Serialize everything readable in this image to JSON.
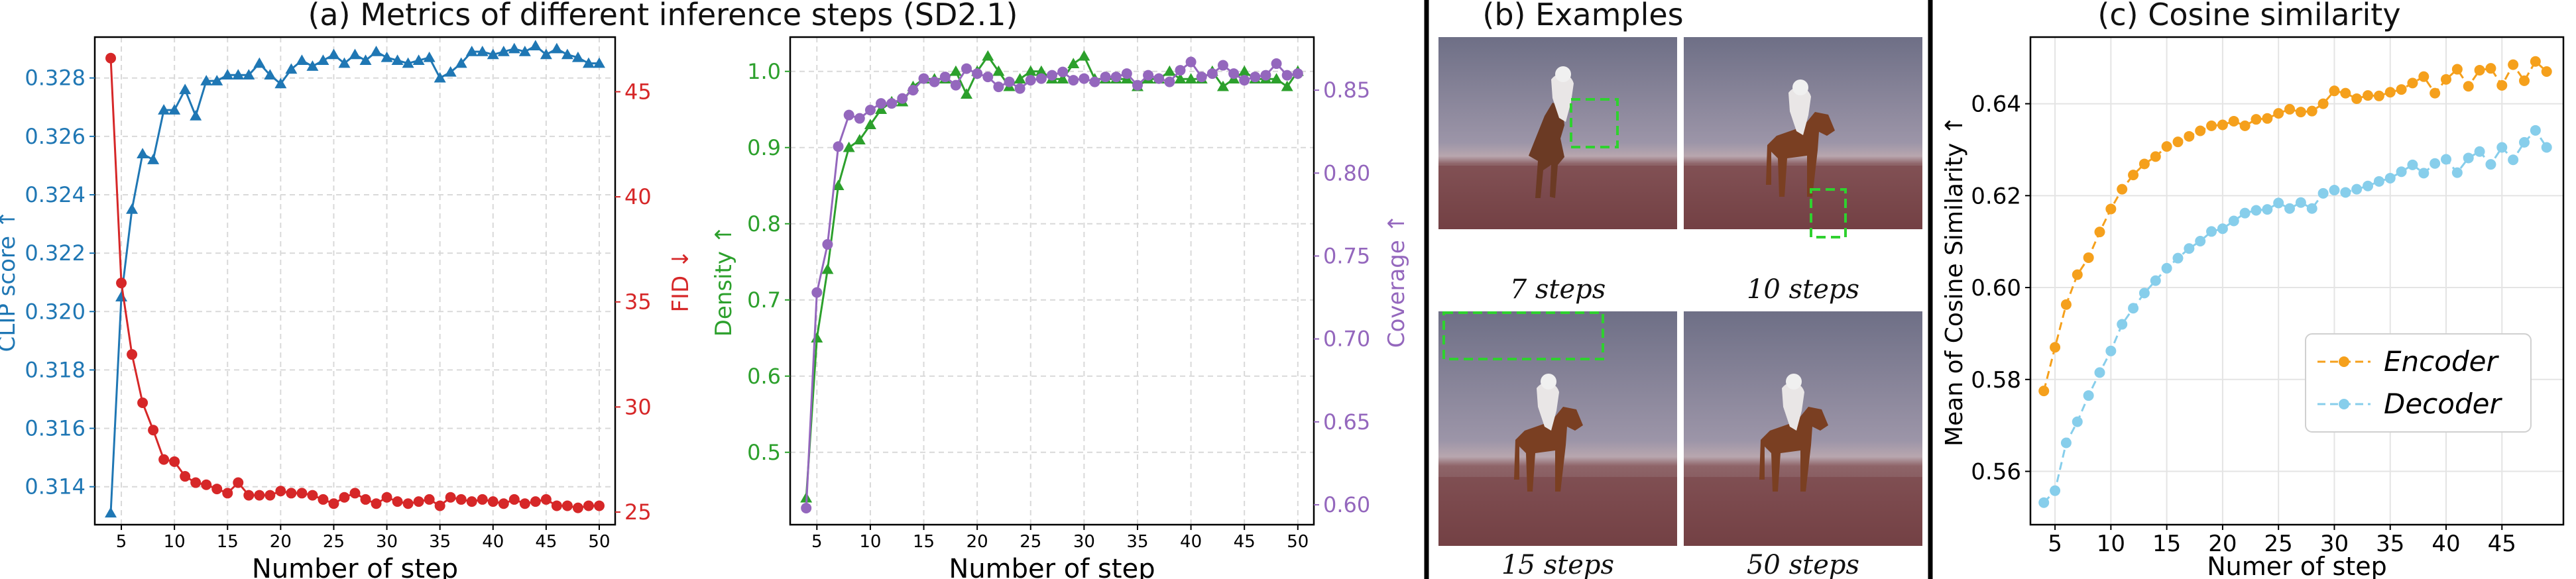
{
  "sections": {
    "a_title": "(a) Metrics of different inference steps (SD2.1)",
    "b_title": "(b) Examples",
    "c_title": "(c) Cosine similarity"
  },
  "examples": [
    {
      "caption": "7 steps"
    },
    {
      "caption": "10 steps"
    },
    {
      "caption": "15 steps"
    },
    {
      "caption": "50 steps"
    }
  ],
  "colors": {
    "clip": "#1f77b4",
    "fid": "#d62728",
    "density": "#2ca02c",
    "coverage": "#9467bd",
    "encoder": "#f5a01c",
    "decoder": "#87ceeb",
    "grid": "#d9d9d9"
  },
  "chart_data": [
    {
      "type": "line",
      "xlabel": "Number of step",
      "xlim": [
        2.5,
        51.5
      ],
      "xticks": [
        5,
        10,
        15,
        20,
        25,
        30,
        35,
        40,
        45,
        50
      ],
      "x": [
        4,
        5,
        6,
        7,
        8,
        9,
        10,
        11,
        12,
        13,
        14,
        15,
        16,
        17,
        18,
        19,
        20,
        21,
        22,
        23,
        24,
        25,
        26,
        27,
        28,
        29,
        30,
        31,
        32,
        33,
        34,
        35,
        36,
        37,
        38,
        39,
        40,
        41,
        42,
        43,
        44,
        45,
        46,
        47,
        48,
        49,
        50
      ],
      "y_left": {
        "label": "CLIP score ↑",
        "ylim": [
          0.3127,
          0.3294
        ],
        "ticks": [
          "0.314",
          "0.316",
          "0.318",
          "0.320",
          "0.322",
          "0.324",
          "0.326",
          "0.328"
        ],
        "tick_values": [
          0.314,
          0.316,
          0.318,
          0.32,
          0.322,
          0.324,
          0.326,
          0.328
        ]
      },
      "y_right": {
        "label": "FID ↓",
        "ylim": [
          24.4,
          47.6
        ],
        "ticks": [
          "25",
          "30",
          "35",
          "40",
          "45"
        ],
        "tick_values": [
          25,
          30,
          35,
          40,
          45
        ]
      },
      "series": [
        {
          "axis": "left",
          "marker": "triangle",
          "color": "#1f77b4",
          "values": [
            0.3131,
            0.3205,
            0.3235,
            0.3254,
            0.3252,
            0.3269,
            0.3269,
            0.3276,
            0.3267,
            0.3279,
            0.3279,
            0.3281,
            0.3281,
            0.3281,
            0.3285,
            0.3281,
            0.3278,
            0.3283,
            0.3286,
            0.3284,
            0.3286,
            0.3288,
            0.3285,
            0.3288,
            0.3286,
            0.3289,
            0.3287,
            0.3286,
            0.3285,
            0.3286,
            0.3287,
            0.328,
            0.3282,
            0.3285,
            0.3289,
            0.3289,
            0.3288,
            0.3289,
            0.329,
            0.3289,
            0.3291,
            0.3288,
            0.329,
            0.3288,
            0.3287,
            0.3285,
            0.3285
          ]
        },
        {
          "axis": "right",
          "marker": "circle",
          "color": "#d62728",
          "values": [
            46.6,
            35.9,
            32.5,
            30.2,
            28.9,
            27.5,
            27.4,
            26.7,
            26.4,
            26.3,
            26.1,
            25.9,
            26.4,
            25.8,
            25.8,
            25.8,
            26.0,
            25.9,
            25.9,
            25.8,
            25.6,
            25.4,
            25.7,
            25.9,
            25.6,
            25.4,
            25.7,
            25.5,
            25.4,
            25.5,
            25.6,
            25.3,
            25.7,
            25.6,
            25.5,
            25.6,
            25.5,
            25.4,
            25.6,
            25.4,
            25.5,
            25.6,
            25.3,
            25.3,
            25.2,
            25.3,
            25.3
          ]
        }
      ]
    },
    {
      "type": "line",
      "xlabel": "Number of step",
      "xlim": [
        2.5,
        51.5
      ],
      "xticks": [
        5,
        10,
        15,
        20,
        25,
        30,
        35,
        40,
        45,
        50
      ],
      "x": [
        4,
        5,
        6,
        7,
        8,
        9,
        10,
        11,
        12,
        13,
        14,
        15,
        16,
        17,
        18,
        19,
        20,
        21,
        22,
        23,
        24,
        25,
        26,
        27,
        28,
        29,
        30,
        31,
        32,
        33,
        34,
        35,
        36,
        37,
        38,
        39,
        40,
        41,
        42,
        43,
        44,
        45,
        46,
        47,
        48,
        49,
        50
      ],
      "y_left": {
        "label": "Density ↑",
        "ylim": [
          0.405,
          1.045
        ],
        "ticks": [
          "0.5",
          "0.6",
          "0.7",
          "0.8",
          "0.9",
          "1.0"
        ],
        "tick_values": [
          0.5,
          0.6,
          0.7,
          0.8,
          0.9,
          1.0
        ]
      },
      "y_right": {
        "label": "Coverage ↑",
        "ylim": [
          0.588,
          0.882
        ],
        "ticks": [
          "0.60",
          "0.65",
          "0.70",
          "0.75",
          "0.80",
          "0.85"
        ],
        "tick_values": [
          0.6,
          0.65,
          0.7,
          0.75,
          0.8,
          0.85
        ]
      },
      "series": [
        {
          "axis": "left",
          "marker": "triangle",
          "color": "#2ca02c",
          "values": [
            0.44,
            0.65,
            0.74,
            0.85,
            0.9,
            0.91,
            0.93,
            0.95,
            0.96,
            0.96,
            0.98,
            0.99,
            0.99,
            0.99,
            1.0,
            0.97,
            1.0,
            1.02,
            1.0,
            0.98,
            0.99,
            1.0,
            1.0,
            0.99,
            0.99,
            1.01,
            1.02,
            0.99,
            0.99,
            0.99,
            0.99,
            0.98,
            0.99,
            0.99,
            1.0,
            0.99,
            0.99,
            0.99,
            1.0,
            0.98,
            0.99,
            1.0,
            0.99,
            0.99,
            0.99,
            0.98,
            1.0
          ]
        },
        {
          "axis": "right",
          "marker": "circle",
          "color": "#9467bd",
          "values": [
            0.598,
            0.728,
            0.757,
            0.816,
            0.835,
            0.833,
            0.838,
            0.842,
            0.842,
            0.845,
            0.85,
            0.857,
            0.855,
            0.858,
            0.853,
            0.863,
            0.86,
            0.858,
            0.852,
            0.855,
            0.851,
            0.856,
            0.857,
            0.859,
            0.861,
            0.856,
            0.857,
            0.855,
            0.858,
            0.858,
            0.86,
            0.853,
            0.859,
            0.857,
            0.855,
            0.862,
            0.867,
            0.858,
            0.86,
            0.865,
            0.86,
            0.856,
            0.858,
            0.859,
            0.866,
            0.859,
            0.86
          ]
        }
      ]
    },
    {
      "type": "line",
      "title": "(c) Cosine similarity",
      "xlabel": "Numer of step",
      "ylabel": "Mean of Cosine Similarity ↑",
      "xlim": [
        2.8,
        50.5
      ],
      "ylim": [
        0.5484,
        0.6545
      ],
      "xticks": [
        5,
        10,
        15,
        20,
        25,
        30,
        35,
        40,
        45
      ],
      "yticks": [
        "0.56",
        "0.58",
        "0.60",
        "0.62",
        "0.64"
      ],
      "ytick_values": [
        0.56,
        0.58,
        0.6,
        0.62,
        0.64
      ],
      "x": [
        4,
        5,
        6,
        7,
        8,
        9,
        10,
        11,
        12,
        13,
        14,
        15,
        16,
        17,
        18,
        19,
        20,
        21,
        22,
        23,
        24,
        25,
        26,
        27,
        28,
        29,
        30,
        31,
        32,
        33,
        34,
        35,
        36,
        37,
        38,
        39,
        40,
        41,
        42,
        43,
        44,
        45,
        46,
        47,
        48,
        49
      ],
      "legend": "center-right",
      "series": [
        {
          "name": "Encoder",
          "color": "#f5a01c",
          "values": [
            0.5775,
            0.587,
            0.5963,
            0.6028,
            0.6065,
            0.6121,
            0.6171,
            0.6214,
            0.6245,
            0.6269,
            0.6285,
            0.6307,
            0.6317,
            0.6329,
            0.6341,
            0.6352,
            0.6354,
            0.6362,
            0.6352,
            0.6366,
            0.6368,
            0.6379,
            0.6388,
            0.6382,
            0.6384,
            0.64,
            0.6428,
            0.6423,
            0.6411,
            0.6418,
            0.6417,
            0.6425,
            0.6431,
            0.6445,
            0.6459,
            0.6423,
            0.6453,
            0.6475,
            0.6438,
            0.6473,
            0.6477,
            0.644,
            0.6485,
            0.645,
            0.6492,
            0.647
          ]
        },
        {
          "name": "Decoder",
          "color": "#87ceeb",
          "values": [
            0.5532,
            0.5558,
            0.5662,
            0.5708,
            0.5765,
            0.5815,
            0.5862,
            0.592,
            0.5955,
            0.5988,
            0.6015,
            0.6042,
            0.6064,
            0.6085,
            0.6101,
            0.6122,
            0.6128,
            0.6145,
            0.6162,
            0.6168,
            0.617,
            0.6184,
            0.6172,
            0.6185,
            0.6172,
            0.6205,
            0.6212,
            0.6207,
            0.6214,
            0.6221,
            0.6231,
            0.6238,
            0.6252,
            0.6267,
            0.6249,
            0.627,
            0.6279,
            0.625,
            0.6282,
            0.6296,
            0.6268,
            0.6305,
            0.6278,
            0.6316,
            0.6342,
            0.6305
          ]
        }
      ]
    }
  ]
}
